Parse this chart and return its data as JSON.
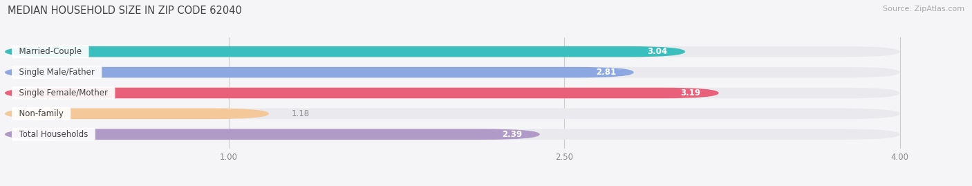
{
  "title": "MEDIAN HOUSEHOLD SIZE IN ZIP CODE 62040",
  "source": "Source: ZipAtlas.com",
  "categories": [
    "Married-Couple",
    "Single Male/Father",
    "Single Female/Mother",
    "Non-family",
    "Total Households"
  ],
  "values": [
    3.04,
    2.81,
    3.19,
    1.18,
    2.39
  ],
  "bar_colors": [
    "#3bbfbe",
    "#8da8e0",
    "#e9607a",
    "#f5c89a",
    "#b09ac8"
  ],
  "track_color": "#eaeaee",
  "xlim_data": [
    0,
    4.3
  ],
  "xlim_display": [
    0,
    4.3
  ],
  "xticks": [
    1.0,
    2.5,
    4.0
  ],
  "bar_height": 0.52,
  "label_fontsize": 8.5,
  "value_fontsize": 8.5,
  "title_fontsize": 10.5,
  "source_fontsize": 8,
  "background_color": "#f5f5f7",
  "label_bg_color": "#ffffff",
  "value_inside_color": "#ffffff",
  "value_outside_color": "#888888",
  "label_text_color": "#444444",
  "inside_threshold": 1.8
}
